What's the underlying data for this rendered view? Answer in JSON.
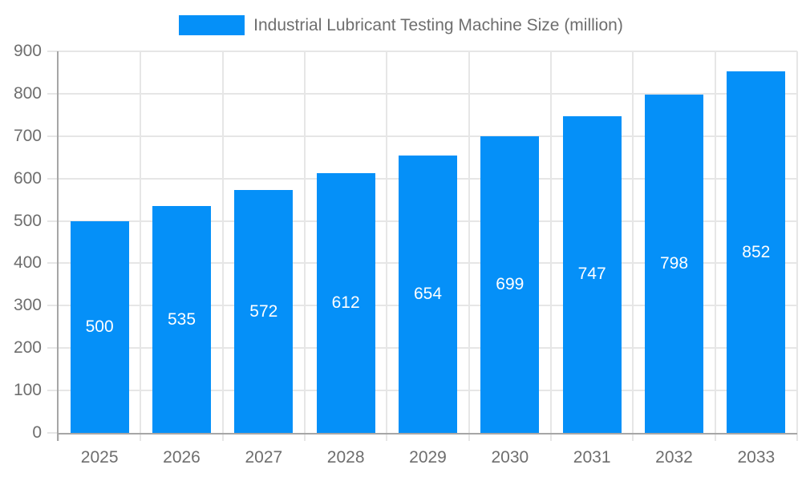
{
  "chart_data": {
    "type": "bar",
    "title": "Industrial Lubricant Testing Machine Size (million)",
    "categories": [
      "2025",
      "2026",
      "2027",
      "2028",
      "2029",
      "2030",
      "2031",
      "2032",
      "2033"
    ],
    "values": [
      500,
      535,
      572,
      612,
      654,
      699,
      747,
      798,
      852
    ],
    "ylim": [
      0,
      900
    ],
    "ytick_step": 100,
    "grid": true,
    "legend_position": "top",
    "bar_color": "#0590f8",
    "value_label_color": "#ffffff",
    "axis_text_color": "#6e6e6e",
    "grid_color": "#e6e6e6",
    "axis_line_color": "#a6a6a6"
  },
  "legend": {
    "label": "Industrial Lubricant Testing Machine Size (million)"
  }
}
